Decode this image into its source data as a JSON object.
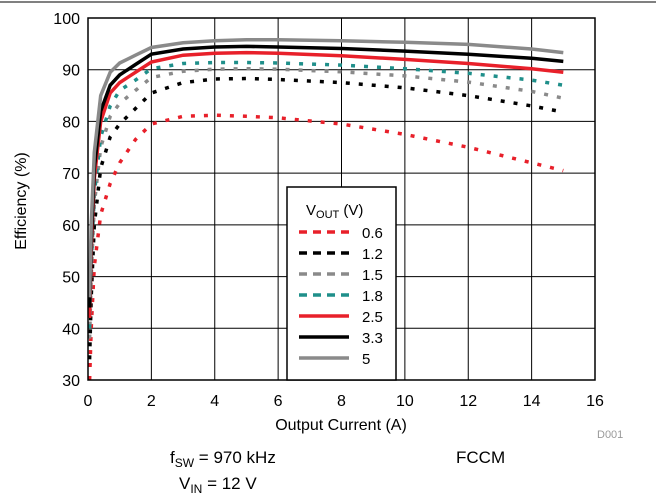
{
  "chart_data": {
    "type": "line",
    "xlabel": "Output Current (A)",
    "ylabel": "Efficiency (%)",
    "xlim": [
      0,
      16
    ],
    "ylim": [
      30,
      100
    ],
    "xticks": [
      "0",
      "2",
      "4",
      "6",
      "8",
      "10",
      "12",
      "14",
      "16"
    ],
    "yticks": [
      "30",
      "40",
      "50",
      "60",
      "70",
      "80",
      "90",
      "100"
    ],
    "grid": true,
    "legend": {
      "title_main": "V",
      "title_sub": "OUT",
      "title_unit": " (V)",
      "placement": "center-bottom"
    },
    "series": [
      {
        "name": "0.6",
        "color": "#e8202a",
        "style": "dotted",
        "x": [
          0.05,
          0.1,
          0.2,
          0.4,
          0.7,
          1,
          1.5,
          2,
          3,
          4,
          5,
          6,
          8,
          10,
          12,
          14,
          15
        ],
        "y": [
          30,
          40,
          52,
          62,
          68,
          72,
          76.5,
          79.5,
          81,
          81.2,
          81,
          80.7,
          79.5,
          77.5,
          75,
          72,
          70.5
        ]
      },
      {
        "name": "1.2",
        "color": "#000000",
        "style": "dotted",
        "x": [
          0.05,
          0.1,
          0.2,
          0.4,
          0.7,
          1,
          1.5,
          2,
          3,
          4,
          5,
          6,
          8,
          10,
          12,
          14,
          15
        ],
        "y": [
          34,
          46,
          60,
          71,
          77,
          79.5,
          82.5,
          85.5,
          87.5,
          88.2,
          88.3,
          88.1,
          87.5,
          86.5,
          85,
          83,
          81.8
        ]
      },
      {
        "name": "1.5",
        "color": "#8a8a8a",
        "style": "dotted",
        "x": [
          0.05,
          0.1,
          0.2,
          0.4,
          0.7,
          1,
          1.5,
          2,
          3,
          4,
          5,
          6,
          8,
          10,
          12,
          14,
          15
        ],
        "y": [
          38,
          50,
          64,
          75,
          81,
          83.5,
          86,
          88.5,
          89.7,
          90.1,
          90.2,
          90.1,
          89.6,
          88.8,
          87.6,
          85.8,
          84.5
        ]
      },
      {
        "name": "1.8",
        "color": "#1f8f8a",
        "style": "dotted",
        "x": [
          0.05,
          0.1,
          0.2,
          0.4,
          0.7,
          1,
          1.5,
          2,
          3,
          4,
          5,
          6,
          8,
          10,
          12,
          14,
          15
        ],
        "y": [
          40,
          52,
          66,
          77,
          83,
          86,
          88,
          90.2,
          91.2,
          91.4,
          91.4,
          91.3,
          90.9,
          90.2,
          89.3,
          88,
          87
        ]
      },
      {
        "name": "2.5",
        "color": "#e8202a",
        "style": "solid",
        "x": [
          0.05,
          0.1,
          0.2,
          0.4,
          0.7,
          1,
          1.5,
          2,
          3,
          4,
          5,
          6,
          8,
          10,
          12,
          14,
          15
        ],
        "y": [
          42,
          55,
          69,
          80,
          85.5,
          87.5,
          89.5,
          91.5,
          92.8,
          93.2,
          93.3,
          93.2,
          92.7,
          92,
          91.2,
          90.2,
          89.5
        ]
      },
      {
        "name": "3.3",
        "color": "#000000",
        "style": "solid",
        "x": [
          0.05,
          0.1,
          0.2,
          0.4,
          0.7,
          1,
          1.5,
          2,
          3,
          4,
          5,
          6,
          8,
          10,
          12,
          14,
          15
        ],
        "y": [
          44,
          57,
          71,
          82,
          87,
          89,
          91,
          93,
          94,
          94.4,
          94.5,
          94.4,
          94.1,
          93.6,
          93,
          92.2,
          91.6
        ]
      },
      {
        "name": "5",
        "color": "#8a8a8a",
        "style": "solid",
        "x": [
          0.05,
          0.1,
          0.2,
          0.4,
          0.7,
          1,
          1.5,
          2,
          3,
          4,
          5,
          6,
          8,
          10,
          12,
          14,
          15
        ],
        "y": [
          46,
          60,
          74,
          85,
          89.5,
          91.3,
          92.8,
          94.3,
          95.2,
          95.6,
          95.8,
          95.8,
          95.6,
          95.3,
          94.9,
          94,
          93.3
        ]
      }
    ]
  },
  "annotations": {
    "fsw_main": "f",
    "fsw_sub": "SW",
    "fsw_value": " = 970 kHz",
    "vin_main": "V",
    "vin_sub": "IN",
    "vin_value": " = 12 V",
    "mode": "FCCM",
    "figure_id": "D001"
  }
}
